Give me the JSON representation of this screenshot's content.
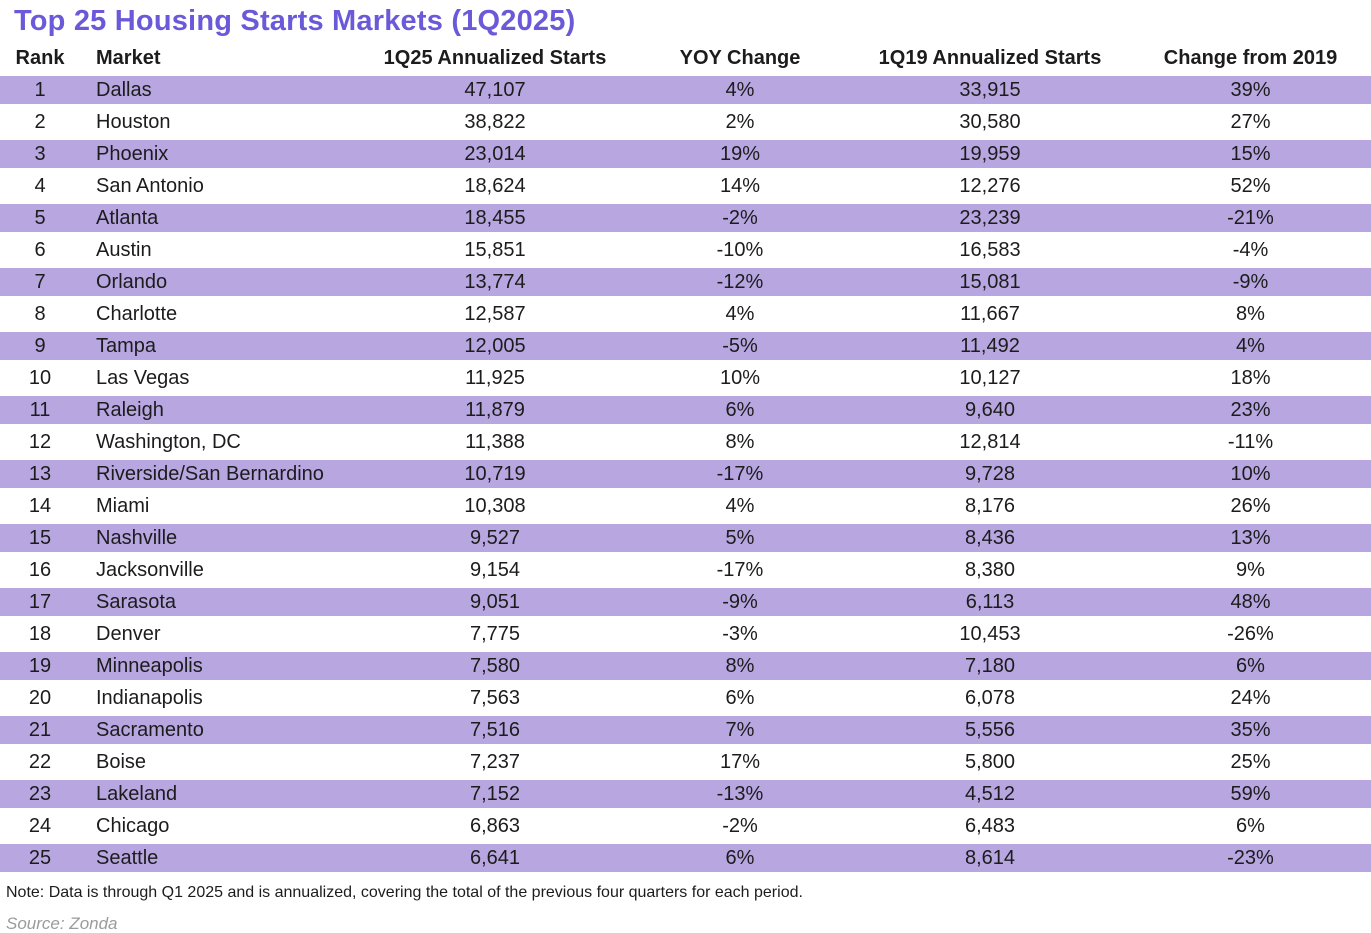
{
  "title": "Top 25 Housing Starts Markets (1Q2025)",
  "note": "Note: Data is through Q1 2025 and is annualized, covering the total of the previous four quarters for each period.",
  "source": "Source: Zonda",
  "colors": {
    "title_accent": "#6a5ad9",
    "row_stripe": "#b7a6e0",
    "body_text": "#1c1c1c",
    "source_text": "#9b9b9b"
  },
  "chart_data": {
    "type": "table",
    "title": "Top 25 Housing Starts Markets (1Q2025)",
    "columns": [
      "Rank",
      "Market",
      "1Q25 Annualized Starts",
      "YOY Change",
      "1Q19 Annualized Starts",
      "Change from 2019"
    ],
    "rows": [
      [
        "1",
        "Dallas",
        "47,107",
        "4%",
        "33,915",
        "39%"
      ],
      [
        "2",
        "Houston",
        "38,822",
        "2%",
        "30,580",
        "27%"
      ],
      [
        "3",
        "Phoenix",
        "23,014",
        "19%",
        "19,959",
        "15%"
      ],
      [
        "4",
        "San Antonio",
        "18,624",
        "14%",
        "12,276",
        "52%"
      ],
      [
        "5",
        "Atlanta",
        "18,455",
        "-2%",
        "23,239",
        "-21%"
      ],
      [
        "6",
        "Austin",
        "15,851",
        "-10%",
        "16,583",
        "-4%"
      ],
      [
        "7",
        "Orlando",
        "13,774",
        "-12%",
        "15,081",
        "-9%"
      ],
      [
        "8",
        "Charlotte",
        "12,587",
        "4%",
        "11,667",
        "8%"
      ],
      [
        "9",
        "Tampa",
        "12,005",
        "-5%",
        "11,492",
        "4%"
      ],
      [
        "10",
        "Las Vegas",
        "11,925",
        "10%",
        "10,127",
        "18%"
      ],
      [
        "11",
        "Raleigh",
        "11,879",
        "6%",
        "9,640",
        "23%"
      ],
      [
        "12",
        "Washington, DC",
        "11,388",
        "8%",
        "12,814",
        "-11%"
      ],
      [
        "13",
        "Riverside/San Bernardino",
        "10,719",
        "-17%",
        "9,728",
        "10%"
      ],
      [
        "14",
        "Miami",
        "10,308",
        "4%",
        "8,176",
        "26%"
      ],
      [
        "15",
        "Nashville",
        "9,527",
        "5%",
        "8,436",
        "13%"
      ],
      [
        "16",
        "Jacksonville",
        "9,154",
        "-17%",
        "8,380",
        "9%"
      ],
      [
        "17",
        "Sarasota",
        "9,051",
        "-9%",
        "6,113",
        "48%"
      ],
      [
        "18",
        "Denver",
        "7,775",
        "-3%",
        "10,453",
        "-26%"
      ],
      [
        "19",
        "Minneapolis",
        "7,580",
        "8%",
        "7,180",
        "6%"
      ],
      [
        "20",
        "Indianapolis",
        "7,563",
        "6%",
        "6,078",
        "24%"
      ],
      [
        "21",
        "Sacramento",
        "7,516",
        "7%",
        "5,556",
        "35%"
      ],
      [
        "22",
        "Boise",
        "7,237",
        "17%",
        "5,800",
        "25%"
      ],
      [
        "23",
        "Lakeland",
        "7,152",
        "-13%",
        "4,512",
        "59%"
      ],
      [
        "24",
        "Chicago",
        "6,863",
        "-2%",
        "6,483",
        "6%"
      ],
      [
        "25",
        "Seattle",
        "6,641",
        "6%",
        "8,614",
        "-23%"
      ]
    ],
    "note": "Note: Data is through Q1 2025 and is annualized, covering the total of the previous four quarters for each period.",
    "source": "Source: Zonda",
    "stripe_pattern": "odd rows (1,3,5,...) lavender #b7a6e0, even rows white"
  }
}
